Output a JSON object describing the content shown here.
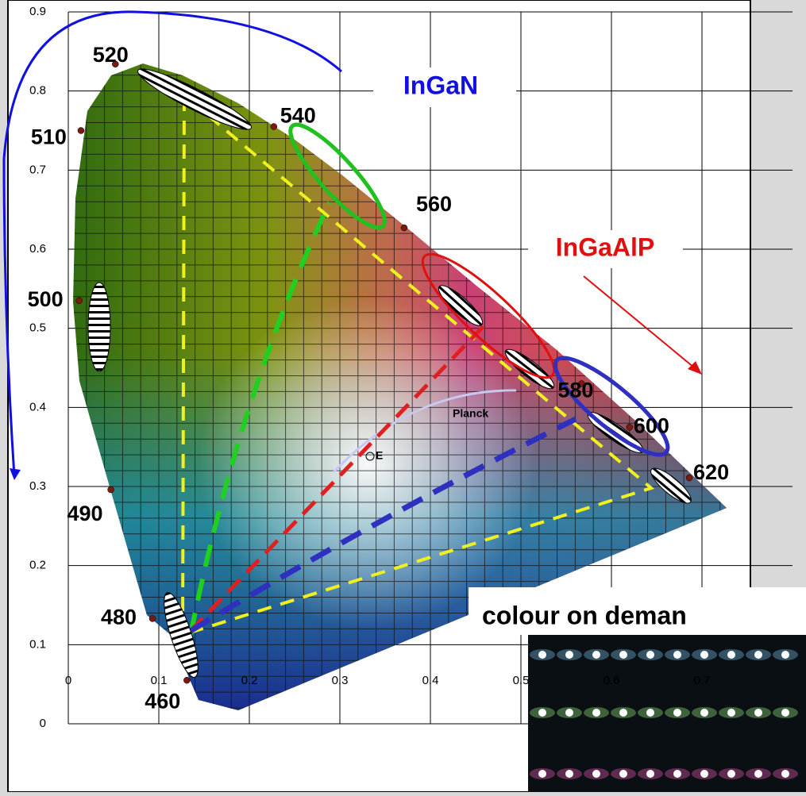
{
  "chart_data": {
    "type": "chromaticity",
    "xlim": [
      0,
      0.8
    ],
    "ylim": [
      0,
      0.9
    ],
    "xticks": [
      0,
      0.1,
      0.2,
      0.3,
      0.4,
      0.5,
      0.6,
      0.7
    ],
    "yticks": [
      0,
      0.1,
      0.2,
      0.3,
      0.4,
      0.5,
      0.6,
      0.7,
      0.8,
      0.9
    ],
    "grid": true,
    "locus_color": "#7a1a10",
    "spectral_points": [
      {
        "label": "460",
        "x": 0.131,
        "y": 0.055
      },
      {
        "label": "480",
        "x": 0.093,
        "y": 0.133
      },
      {
        "label": "490",
        "x": 0.047,
        "y": 0.296
      },
      {
        "label": "500",
        "x": 0.012,
        "y": 0.535
      },
      {
        "label": "510",
        "x": 0.014,
        "y": 0.75
      },
      {
        "label": "520",
        "x": 0.052,
        "y": 0.834
      },
      {
        "label": "540",
        "x": 0.227,
        "y": 0.755
      },
      {
        "label": "560",
        "x": 0.371,
        "y": 0.627
      },
      {
        "label": "580",
        "x": 0.567,
        "y": 0.43
      },
      {
        "label": "600",
        "x": 0.62,
        "y": 0.375
      },
      {
        "label": "620",
        "x": 0.686,
        "y": 0.311
      }
    ],
    "annotations": {
      "ingan": "InGaN",
      "ingaalp": "InGaAlP",
      "planck": "Planck",
      "e": "E",
      "photo_caption": "colour on deman"
    }
  }
}
